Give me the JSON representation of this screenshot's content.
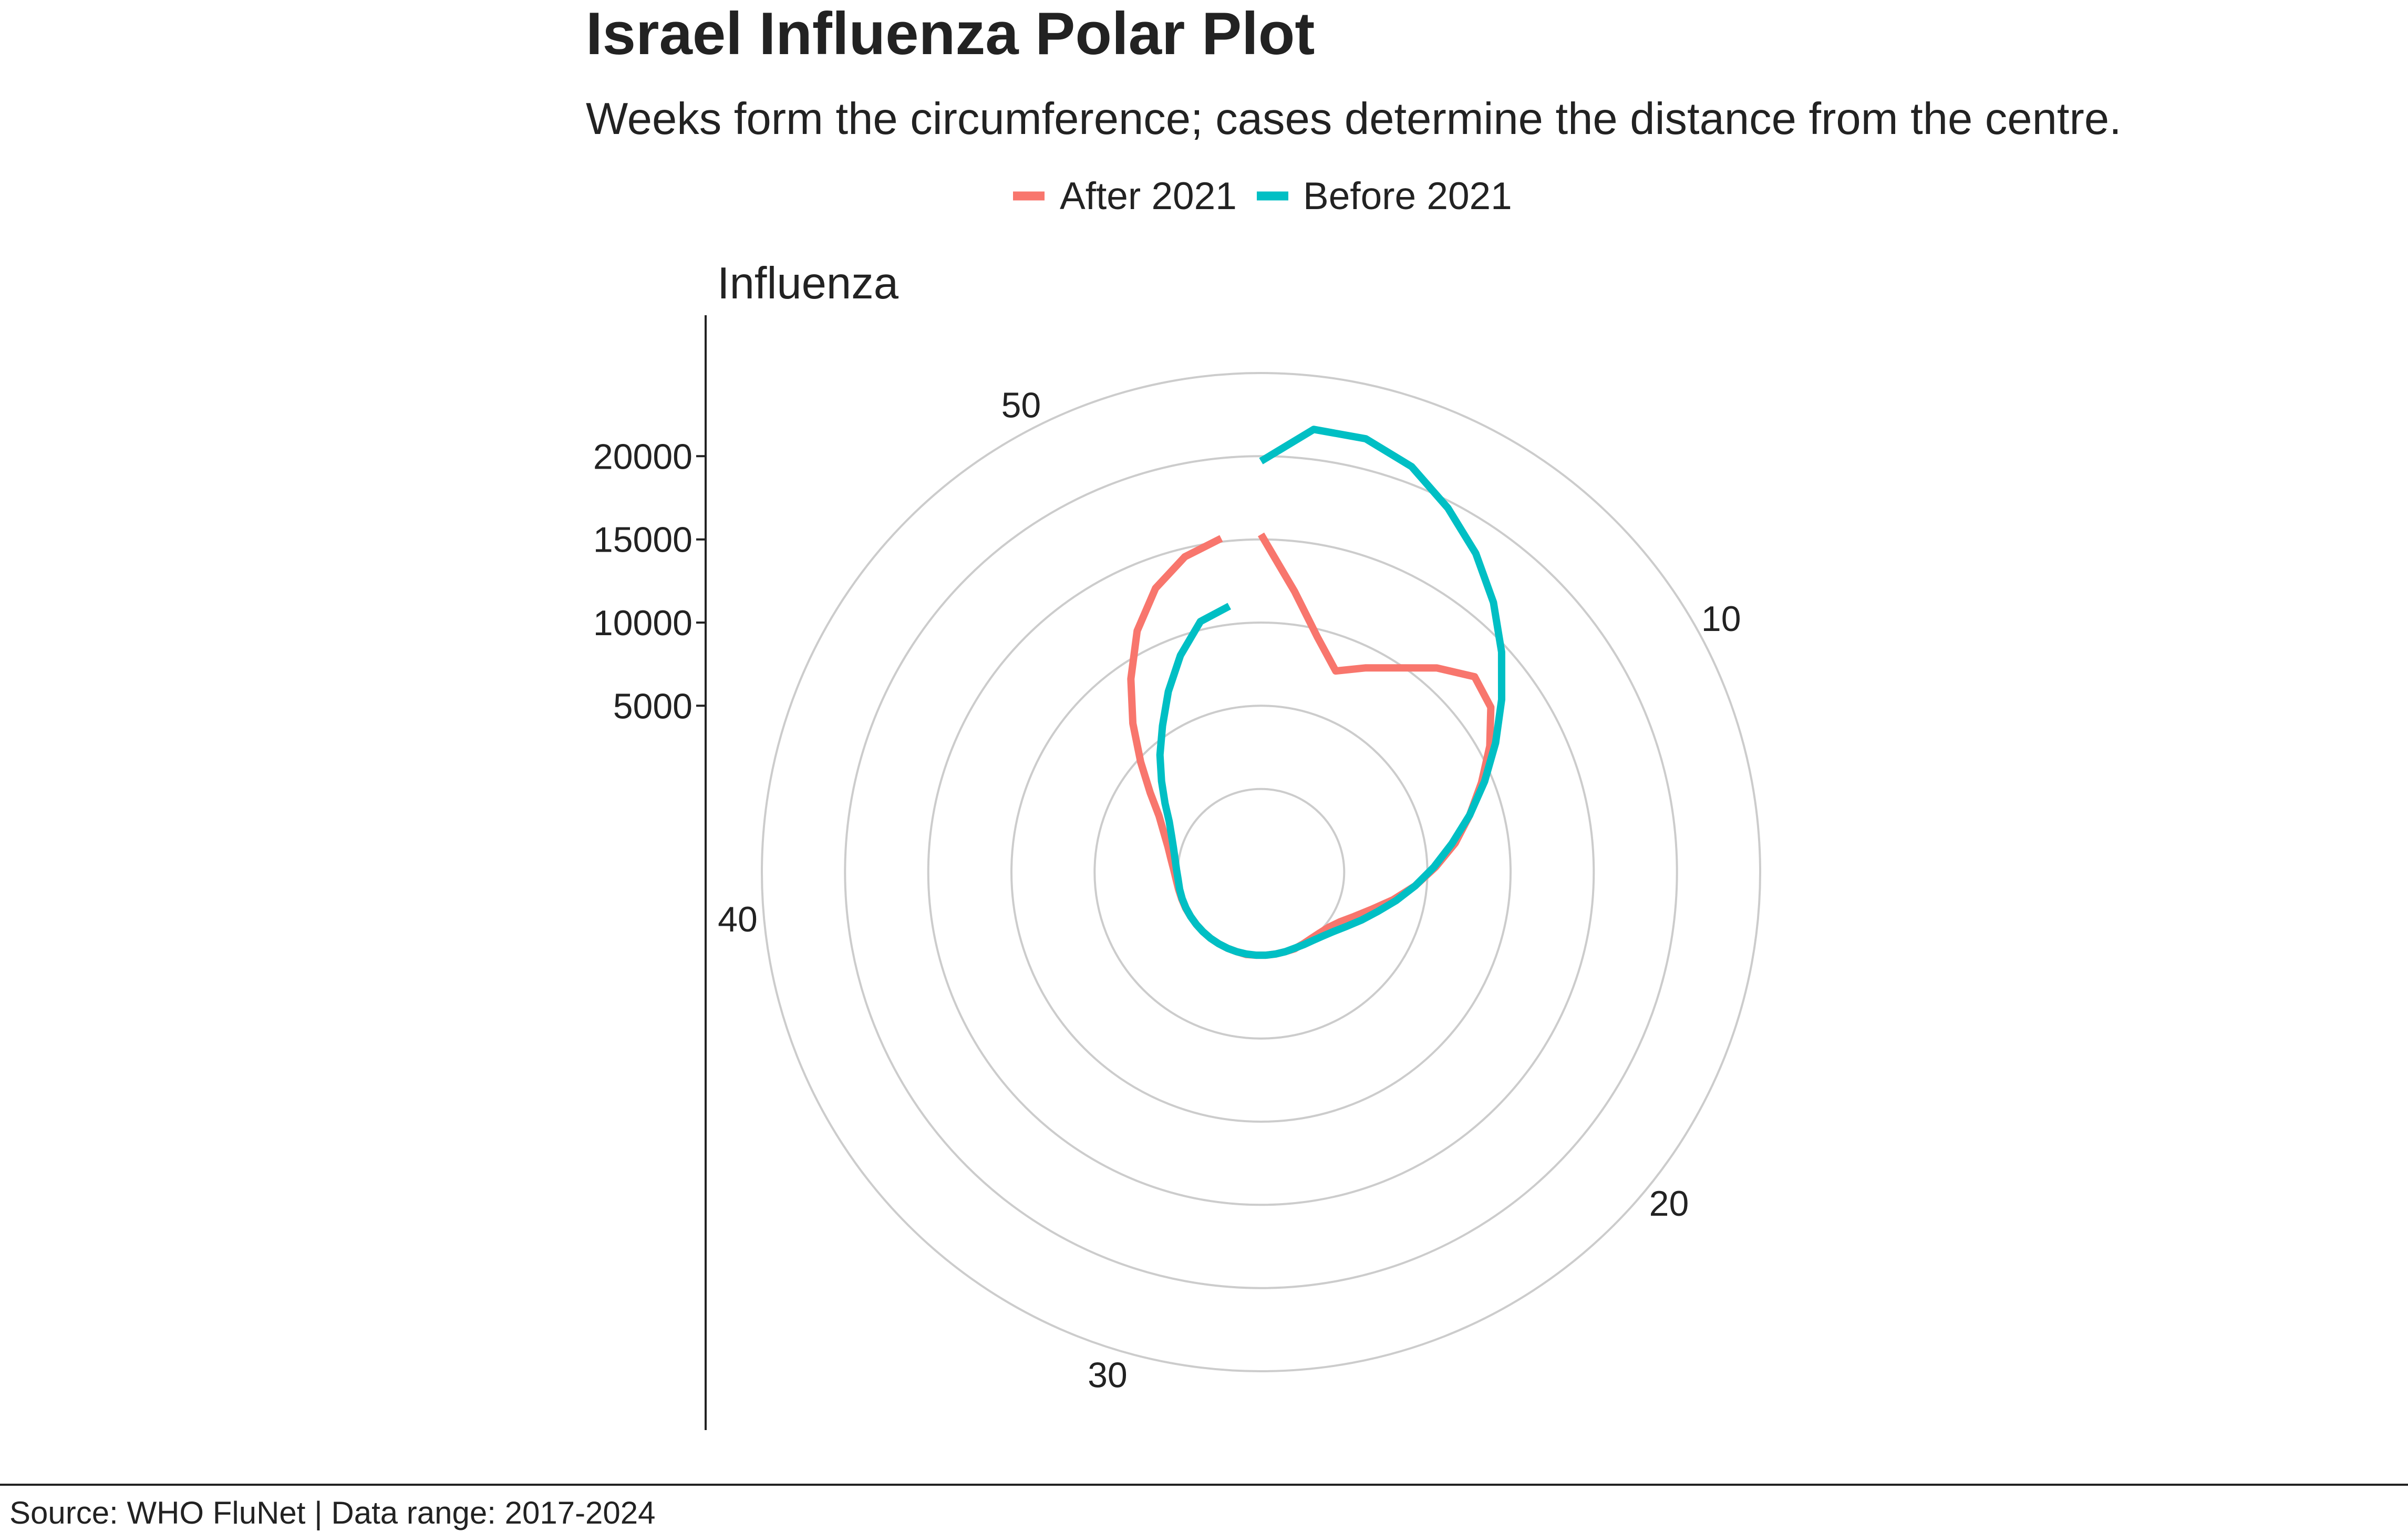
{
  "chart_data": {
    "type": "line",
    "coordinate_system": "polar",
    "title": "Israel Influenza Polar Plot",
    "subtitle": "Weeks form the circumference; cases determine the distance from the centre.",
    "ylabel": "Influenza",
    "caption": "Source: WHO FluNet | Data range: 2017-2024",
    "angle_axis": {
      "min": 1,
      "max": 53,
      "tick_values": [
        10,
        20,
        30,
        40,
        50
      ]
    },
    "radius_axis": {
      "min": -5000,
      "max": 25000,
      "tick_values": [
        5000,
        10000,
        15000,
        20000
      ],
      "grid_rings": [
        0,
        5000,
        10000,
        15000,
        20000,
        25000
      ]
    },
    "legend": {
      "position": "top",
      "entries": [
        "After 2021",
        "Before 2021"
      ]
    },
    "series": [
      {
        "name": "After 2021",
        "color": "#F8766D",
        "points": [
          [
            1,
            15300
          ],
          [
            2,
            12000
          ],
          [
            3,
            9500
          ],
          [
            4,
            7900
          ],
          [
            5,
            8800
          ],
          [
            6,
            9800
          ],
          [
            7,
            11200
          ],
          [
            8,
            12400
          ],
          [
            9,
            12000
          ],
          [
            10,
            10700
          ],
          [
            11,
            9300
          ],
          [
            12,
            8000
          ],
          [
            13,
            6800
          ],
          [
            14,
            5500
          ],
          [
            15,
            4300
          ],
          [
            16,
            3100
          ],
          [
            17,
            2000
          ],
          [
            18,
            1200
          ],
          [
            19,
            600
          ],
          [
            20,
            250
          ],
          [
            21,
            80
          ],
          [
            22,
            0
          ],
          [
            23,
            0
          ],
          [
            24,
            30
          ],
          [
            25,
            0
          ],
          [
            26,
            0
          ],
          [
            27,
            0
          ],
          [
            28,
            0
          ],
          [
            29,
            30
          ],
          [
            30,
            0
          ],
          [
            31,
            0
          ],
          [
            32,
            0
          ],
          [
            33,
            0
          ],
          [
            34,
            0
          ],
          [
            35,
            0
          ],
          [
            36,
            0
          ],
          [
            37,
            20
          ],
          [
            38,
            30
          ],
          [
            39,
            60
          ],
          [
            40,
            120
          ],
          [
            41,
            250
          ],
          [
            42,
            480
          ],
          [
            43,
            800
          ],
          [
            44,
            1300
          ],
          [
            45,
            2000
          ],
          [
            46,
            3200
          ],
          [
            47,
            4800
          ],
          [
            48,
            6800
          ],
          [
            49,
            9000
          ],
          [
            50,
            11300
          ],
          [
            51,
            13200
          ],
          [
            52,
            14500
          ],
          [
            53,
            15200
          ]
        ]
      },
      {
        "name": "Before 2021",
        "color": "#00BFC4",
        "points": [
          [
            1,
            19700
          ],
          [
            2,
            21800
          ],
          [
            3,
            21800
          ],
          [
            4,
            21000
          ],
          [
            5,
            19600
          ],
          [
            6,
            18100
          ],
          [
            7,
            16400
          ],
          [
            8,
            14600
          ],
          [
            9,
            12800
          ],
          [
            10,
            11100
          ],
          [
            11,
            9500
          ],
          [
            12,
            8000
          ],
          [
            13,
            6600
          ],
          [
            14,
            5400
          ],
          [
            15,
            4300
          ],
          [
            16,
            3300
          ],
          [
            17,
            2400
          ],
          [
            18,
            1700
          ],
          [
            19,
            1100
          ],
          [
            20,
            650
          ],
          [
            21,
            350
          ],
          [
            22,
            160
          ],
          [
            23,
            60
          ],
          [
            24,
            0
          ],
          [
            25,
            0
          ],
          [
            26,
            0
          ],
          [
            27,
            0
          ],
          [
            28,
            0
          ],
          [
            29,
            0
          ],
          [
            30,
            0
          ],
          [
            31,
            0
          ],
          [
            32,
            0
          ],
          [
            33,
            0
          ],
          [
            34,
            0
          ],
          [
            35,
            0
          ],
          [
            36,
            0
          ],
          [
            37,
            0
          ],
          [
            38,
            0
          ],
          [
            39,
            0
          ],
          [
            40,
            0
          ],
          [
            41,
            80
          ],
          [
            42,
            220
          ],
          [
            43,
            450
          ],
          [
            44,
            800
          ],
          [
            45,
            1300
          ],
          [
            46,
            2100
          ],
          [
            47,
            3100
          ],
          [
            48,
            4300
          ],
          [
            49,
            5600
          ],
          [
            50,
            7200
          ],
          [
            51,
            8900
          ],
          [
            52,
            10500
          ],
          [
            53,
            11100
          ]
        ]
      }
    ]
  }
}
